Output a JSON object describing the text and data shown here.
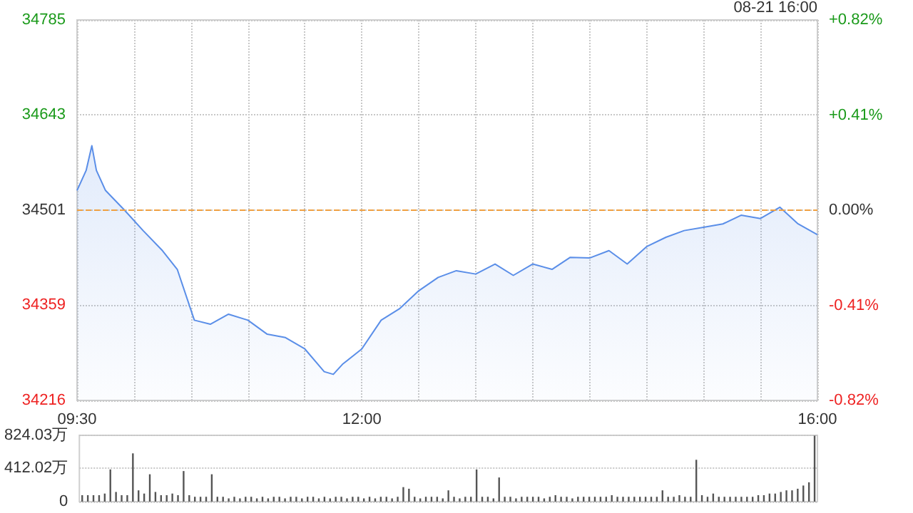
{
  "chart_data": [
    {
      "type": "area",
      "annotations": [
        "08-21 16:00"
      ],
      "x": [
        9.5,
        9.58,
        9.63,
        9.67,
        9.75,
        9.92,
        10.08,
        10.25,
        10.38,
        10.53,
        10.67,
        10.83,
        11.0,
        11.17,
        11.33,
        11.5,
        11.67,
        11.75,
        11.83,
        12.0,
        12.17,
        12.33,
        12.5,
        12.67,
        12.83,
        13.0,
        13.17,
        13.33,
        13.5,
        13.67,
        13.83,
        14.0,
        14.17,
        14.33,
        14.5,
        14.67,
        14.83,
        15.0,
        15.17,
        15.33,
        15.5,
        15.67,
        15.83,
        16.0
      ],
      "series": [
        {
          "color": "#5a8ee8",
          "values": [
            34530,
            34560,
            34597,
            34560,
            34530,
            34500,
            34470,
            34440,
            34412,
            34336,
            34330,
            34345,
            34336,
            34315,
            34310,
            34293,
            34259,
            34255,
            34270,
            34293,
            34336,
            34353,
            34380,
            34400,
            34410,
            34405,
            34420,
            34403,
            34420,
            34412,
            34430,
            34429,
            34440,
            34420,
            34446,
            34460,
            34470,
            34475,
            34480,
            34493,
            34488,
            34505,
            34480,
            34464
          ]
        }
      ],
      "xlim": [
        9.5,
        16
      ],
      "xticks": [
        {
          "value": 9.5,
          "label": "09:30"
        },
        {
          "value": 10,
          "label": null
        },
        {
          "value": 10.5,
          "label": null
        },
        {
          "value": 11,
          "label": null
        },
        {
          "value": 11.5,
          "label": null
        },
        {
          "value": 12,
          "label": "12:00"
        },
        {
          "value": 12.5,
          "label": null
        },
        {
          "value": 13,
          "label": null
        },
        {
          "value": 13.5,
          "label": null
        },
        {
          "value": 14,
          "label": null
        },
        {
          "value": 14.5,
          "label": null
        },
        {
          "value": 15,
          "label": null
        },
        {
          "value": 15.5,
          "label": null
        },
        {
          "value": 16,
          "label": "16:00"
        }
      ],
      "ylim": [
        34216,
        34785
      ],
      "yticks": [
        34216,
        34359,
        34501,
        34643,
        34785
      ],
      "y2lim": [
        -0.82,
        0.82
      ],
      "y2ticks": [
        {
          "value": -0.82,
          "label": "-0.82%"
        },
        {
          "value": -0.41,
          "label": "-0.41%"
        },
        {
          "value": 0,
          "label": "0.00%"
        },
        {
          "value": 0.41,
          "label": "+0.41%"
        },
        {
          "value": 0.82,
          "label": "+0.82%"
        }
      ],
      "ref_lines": [
        {
          "axis": "y",
          "value": 34501,
          "color": "#f0a040",
          "line_style": "dashed"
        }
      ],
      "grid": true
    },
    {
      "type": "bar",
      "categories": [
        null,
        null,
        null,
        null,
        null,
        null,
        null,
        null,
        null,
        null,
        null,
        null,
        null,
        null,
        null,
        null,
        null,
        null,
        null,
        null,
        null,
        null,
        null,
        null,
        null,
        null,
        null,
        null,
        null,
        null,
        null,
        null,
        null,
        null,
        null,
        null,
        null,
        null,
        null,
        null,
        null,
        null,
        null,
        null,
        null,
        null,
        null,
        null,
        null,
        null,
        null,
        null,
        null,
        null,
        null,
        null,
        null,
        null,
        null,
        null,
        null,
        null,
        null,
        null,
        null,
        null,
        null,
        null,
        null,
        null,
        null,
        null,
        null,
        null,
        null,
        null,
        null,
        null,
        null,
        null,
        null,
        null,
        null,
        null,
        null,
        null,
        null,
        null,
        null,
        null,
        null,
        null,
        null,
        null,
        null,
        null,
        null,
        null,
        null,
        null,
        null,
        null,
        null,
        null,
        null,
        null,
        null,
        null,
        null,
        null,
        null,
        null,
        null,
        null,
        null,
        null,
        null,
        null,
        null,
        null,
        null,
        null,
        null,
        null,
        null,
        null,
        null,
        null,
        null,
        null,
        null
      ],
      "series": [
        {
          "color": "#555555",
          "values": [
            80,
            80,
            80,
            80,
            100,
            400,
            120,
            80,
            80,
            600,
            140,
            100,
            340,
            120,
            80,
            80,
            100,
            80,
            380,
            80,
            60,
            60,
            60,
            340,
            60,
            60,
            40,
            60,
            40,
            60,
            60,
            40,
            60,
            40,
            60,
            60,
            40,
            60,
            60,
            40,
            60,
            60,
            40,
            60,
            40,
            60,
            60,
            40,
            60,
            60,
            40,
            60,
            40,
            60,
            60,
            40,
            60,
            180,
            160,
            60,
            40,
            60,
            60,
            60,
            40,
            140,
            60,
            40,
            60,
            60,
            400,
            60,
            60,
            40,
            300,
            60,
            60,
            40,
            60,
            60,
            60,
            60,
            40,
            60,
            80,
            60,
            60,
            40,
            60,
            60,
            60,
            60,
            60,
            60,
            80,
            60,
            60,
            60,
            60,
            60,
            60,
            60,
            60,
            140,
            60,
            60,
            80,
            60,
            60,
            520,
            80,
            60,
            100,
            60,
            60,
            60,
            60,
            60,
            60,
            60,
            80,
            80,
            100,
            100,
            120,
            140,
            140,
            160,
            200,
            240,
            820
          ]
        }
      ],
      "ylim": [
        0,
        824.03
      ],
      "yticks": [
        0,
        {
          "value": 412.02,
          "label": "412.02万"
        },
        {
          "value": 824.03,
          "label": "824.03万"
        }
      ],
      "grid": "y",
      "tick_labels": "y"
    }
  ]
}
